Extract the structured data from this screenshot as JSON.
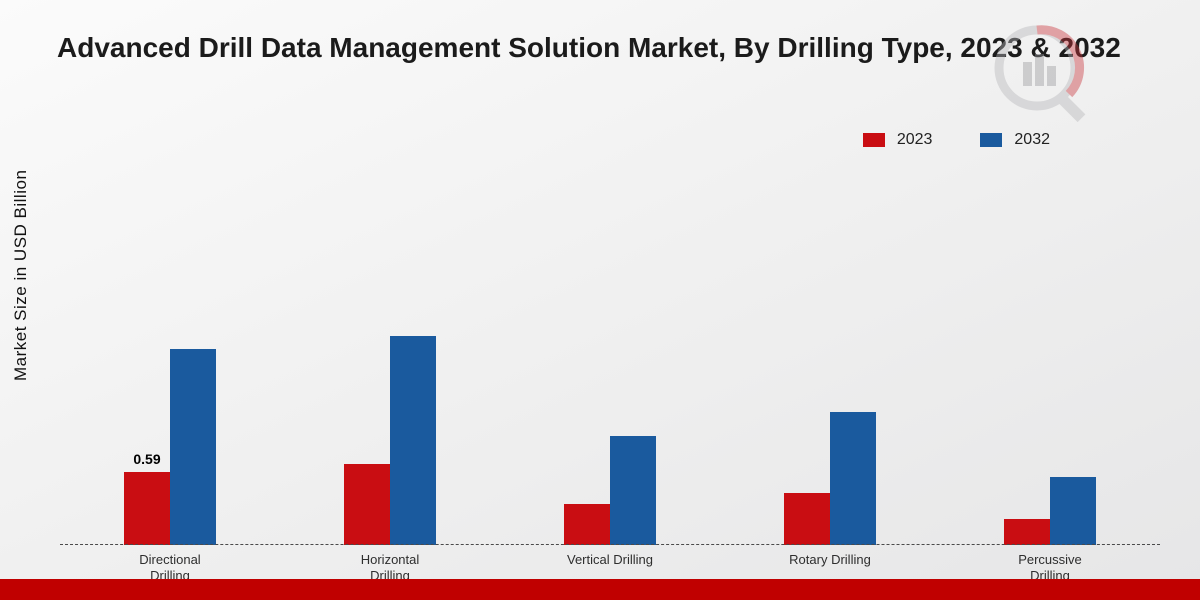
{
  "chart_data": {
    "type": "bar",
    "title": "Advanced Drill Data Management Solution Market, By Drilling Type, 2023 & 2032",
    "ylabel": "Market Size in USD Billion",
    "xlabel": "",
    "categories": [
      "Directional Drilling",
      "Horizontal Drilling",
      "Vertical Drilling",
      "Rotary Drilling",
      "Percussive Drilling"
    ],
    "series": [
      {
        "name": "2023",
        "color": "#c90d12",
        "values": [
          0.59,
          0.65,
          0.33,
          0.42,
          0.21
        ]
      },
      {
        "name": "2032",
        "color": "#1a5a9e",
        "values": [
          1.58,
          1.68,
          0.88,
          1.07,
          0.55
        ]
      }
    ],
    "ylim": [
      0,
      3.5
    ],
    "grid": false,
    "legend_position": "top-right",
    "data_labels": [
      {
        "series": "2023",
        "category": "Directional Drilling",
        "text": "0.59"
      }
    ]
  },
  "footer": {
    "accent_color": "#c00000"
  }
}
